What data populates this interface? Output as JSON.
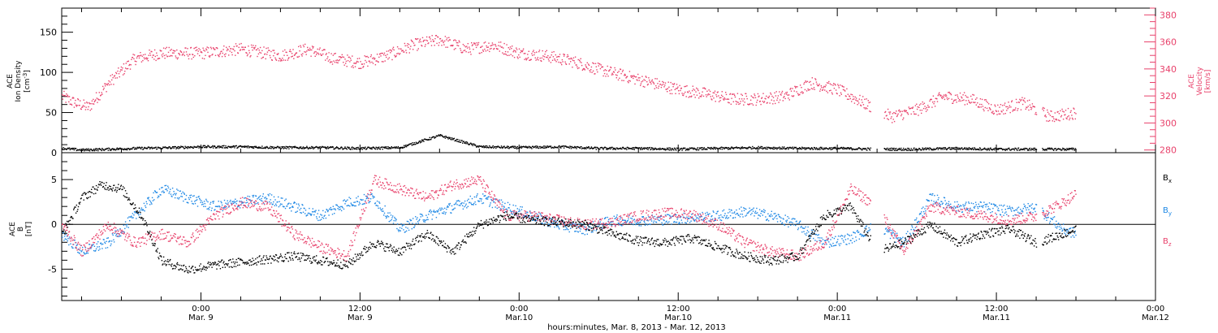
{
  "chart_data": [
    {
      "type": "scatter",
      "panel": "ace-plasma",
      "xlabel": "hours:minutes, Mar. 8, 2013 - Mar. 12, 2013",
      "x_range_hours": [
        -10.5,
        72
      ],
      "ylabel": [
        "ACE",
        "Ion Density",
        "[cm",
        "-3",
        "]"
      ],
      "ylim": [
        0,
        180
      ],
      "yticks": [
        0,
        50,
        100,
        150
      ],
      "y2label": [
        "ACE",
        "Velocity",
        "[km/s]"
      ],
      "y2lim": [
        278,
        385
      ],
      "y2ticks": [
        280,
        300,
        320,
        340,
        360,
        380
      ],
      "grid": false,
      "series": [
        {
          "name": "Ion Density",
          "axis": "left",
          "color": "#000000",
          "x": [
            -10.5,
            -9,
            -7,
            -5,
            -2,
            0,
            3,
            6,
            9,
            12,
            15,
            18,
            21,
            24,
            27,
            30,
            33,
            36,
            39,
            42,
            45,
            48,
            51,
            54,
            57,
            60,
            63,
            66
          ],
          "y": [
            6,
            4,
            5,
            6,
            7,
            8,
            8,
            7,
            7,
            6,
            7,
            22,
            8,
            7,
            8,
            6,
            6,
            5,
            6,
            7,
            6,
            6,
            5,
            5,
            6,
            5,
            5,
            5
          ]
        },
        {
          "name": "Velocity",
          "axis": "right",
          "color": "#e8416b",
          "x": [
            -10.5,
            -9.5,
            -8.5,
            -7,
            -5,
            -3,
            0,
            3,
            6,
            8,
            10,
            12,
            14,
            16,
            18,
            20,
            22,
            24,
            26,
            28,
            30,
            32,
            34,
            36,
            38,
            40,
            42,
            44,
            46,
            48,
            50,
            52,
            54,
            56,
            58,
            60,
            62,
            64,
            66
          ],
          "y": [
            320,
            315,
            312,
            330,
            348,
            352,
            352,
            355,
            350,
            355,
            348,
            345,
            350,
            358,
            362,
            355,
            358,
            352,
            350,
            346,
            340,
            335,
            330,
            325,
            322,
            318,
            318,
            320,
            330,
            325,
            315,
            305,
            310,
            320,
            318,
            310,
            315,
            305,
            308
          ]
        }
      ]
    },
    {
      "type": "scatter",
      "panel": "ace-magnetic-field",
      "xlabel": "hours:minutes, Mar. 8, 2013 - Mar. 12, 2013",
      "ylabel": [
        "ACE",
        "B",
        "[nT]"
      ],
      "ylim": [
        -8.5,
        8
      ],
      "yticks": [
        -5,
        0,
        5
      ],
      "zero_line": true,
      "legend_position": "right",
      "series": [
        {
          "name": "B",
          "subscript": "x",
          "color": "#000000",
          "x": [
            -10.5,
            -9,
            -7.5,
            -6,
            -4.5,
            -3,
            -1,
            1,
            4,
            7,
            9,
            11,
            13,
            15,
            17,
            19,
            21,
            23,
            25,
            27,
            29,
            31,
            33,
            35,
            37,
            39,
            41,
            43,
            45,
            47,
            49,
            51,
            53,
            55,
            57,
            59,
            61,
            63,
            65,
            66
          ],
          "y": [
            -1,
            3,
            4.5,
            4,
            1,
            -4,
            -5,
            -4.5,
            -4,
            -3.5,
            -4,
            -4.5,
            -2,
            -3,
            -1,
            -3,
            0,
            1,
            0.5,
            0.3,
            0,
            -1,
            -1.8,
            -2,
            -1.5,
            -2.5,
            -3.5,
            -4,
            -3.5,
            1,
            2,
            -3,
            -2,
            0,
            -2,
            -1,
            -0.5,
            -2,
            -1,
            -0.5
          ]
        },
        {
          "name": "B",
          "subscript": "y",
          "color": "#1e88e5",
          "x": [
            -10.5,
            -9,
            -7,
            -5,
            -3,
            -1,
            1,
            3,
            5,
            7,
            9,
            11,
            13,
            15,
            17,
            19,
            21,
            23,
            25,
            27,
            29,
            31,
            33,
            35,
            37,
            39,
            41,
            43,
            45,
            47,
            49,
            51,
            53,
            55,
            57,
            59,
            61,
            63,
            65,
            66
          ],
          "y": [
            -1,
            -3,
            -2,
            1,
            4,
            3,
            2,
            2.5,
            3,
            2,
            1,
            2.5,
            3,
            -0.5,
            1,
            2,
            3,
            2,
            1,
            0,
            -0.5,
            0.5,
            0.5,
            0.6,
            0.8,
            1,
            1.5,
            1,
            0,
            -2,
            -1.5,
            0,
            -2,
            3,
            2,
            2,
            1.5,
            2,
            -0.5,
            -1
          ]
        },
        {
          "name": "B",
          "subscript": "z",
          "color": "#e8416b",
          "x": [
            -10.5,
            -9,
            -7,
            -5,
            -3,
            -1,
            1,
            3,
            5,
            7,
            9,
            11,
            13,
            15,
            17,
            19,
            21,
            23,
            25,
            27,
            29,
            31,
            33,
            35,
            37,
            39,
            41,
            43,
            45,
            47,
            49,
            51,
            53,
            55,
            57,
            59,
            61,
            63,
            65,
            66
          ],
          "y": [
            0,
            -3,
            0,
            -2,
            -1,
            -2,
            1,
            2.5,
            2,
            -1,
            -2.5,
            -3.5,
            5,
            4,
            3,
            4.5,
            5,
            1,
            1,
            0.5,
            0,
            0.3,
            1,
            1.3,
            1.2,
            0,
            -2,
            -3,
            -3.5,
            -2,
            4,
            2,
            -3,
            2,
            1.5,
            1,
            0.5,
            1,
            2.5,
            3.5
          ]
        }
      ]
    }
  ],
  "time_axis": {
    "major_ticks": [
      {
        "hours": 0,
        "time": "0:00",
        "date": "Mar. 9"
      },
      {
        "hours": 12,
        "time": "12:00",
        "date": "Mar. 9"
      },
      {
        "hours": 24,
        "time": "0:00",
        "date": "Mar.10"
      },
      {
        "hours": 36,
        "time": "12:00",
        "date": "Mar.10"
      },
      {
        "hours": 48,
        "time": "0:00",
        "date": "Mar.11"
      },
      {
        "hours": 60,
        "time": "12:00",
        "date": "Mar.11"
      },
      {
        "hours": 72,
        "time": "0:00",
        "date": "Mar.12"
      }
    ]
  }
}
